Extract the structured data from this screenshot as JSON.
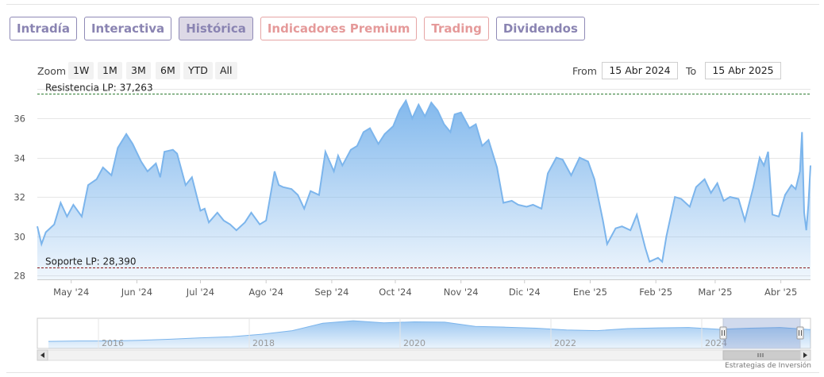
{
  "tabs": [
    {
      "label": "Intradía",
      "active": false,
      "premium": false
    },
    {
      "label": "Interactiva",
      "active": false,
      "premium": false
    },
    {
      "label": "Histórica",
      "active": true,
      "premium": false
    },
    {
      "label": "Indicadores Premium",
      "active": false,
      "premium": true
    },
    {
      "label": "Trading",
      "active": false,
      "premium": true
    },
    {
      "label": "Dividendos",
      "active": false,
      "premium": false
    }
  ],
  "range_selector": {
    "zoom_label": "Zoom",
    "buttons": [
      "1W",
      "1M",
      "3M",
      "6M",
      "YTD",
      "All"
    ],
    "from_label": "From",
    "from_value": "15 Abr 2024",
    "to_label": "To",
    "to_value": "15 Abr 2025"
  },
  "chart_data": {
    "type": "area",
    "title": "",
    "xlabel": "",
    "ylabel": "",
    "x_range": [
      "2024-04-15",
      "2025-04-15"
    ],
    "ylim": [
      27.8,
      37.5
    ],
    "y_ticks": [
      28,
      30,
      32,
      34,
      36
    ],
    "x_ticks": [
      {
        "label": "May '24",
        "date": "2024-05-01"
      },
      {
        "label": "Jun '24",
        "date": "2024-06-01"
      },
      {
        "label": "Jul '24",
        "date": "2024-07-01"
      },
      {
        "label": "Ago '24",
        "date": "2024-08-01"
      },
      {
        "label": "Sep '24",
        "date": "2024-09-01"
      },
      {
        "label": "Oct '24",
        "date": "2024-10-01"
      },
      {
        "label": "Nov '24",
        "date": "2024-11-01"
      },
      {
        "label": "Dic '24",
        "date": "2024-12-01"
      },
      {
        "label": "Ene '25",
        "date": "2025-01-01"
      },
      {
        "label": "Feb '25",
        "date": "2025-02-01"
      },
      {
        "label": "Mar '25",
        "date": "2025-03-01"
      },
      {
        "label": "Abr '25",
        "date": "2025-04-01"
      }
    ],
    "grid": true,
    "line_color": "#7cb5ec",
    "series": [
      {
        "name": "",
        "data": [
          [
            "2024-04-15",
            30.5
          ],
          [
            "2024-04-17",
            29.6
          ],
          [
            "2024-04-19",
            30.2
          ],
          [
            "2024-04-23",
            30.6
          ],
          [
            "2024-04-26",
            31.7
          ],
          [
            "2024-04-29",
            31.0
          ],
          [
            "2024-05-02",
            31.6
          ],
          [
            "2024-05-06",
            31.0
          ],
          [
            "2024-05-09",
            32.6
          ],
          [
            "2024-05-13",
            32.9
          ],
          [
            "2024-05-16",
            33.5
          ],
          [
            "2024-05-20",
            33.1
          ],
          [
            "2024-05-23",
            34.5
          ],
          [
            "2024-05-27",
            35.2
          ],
          [
            "2024-05-30",
            34.7
          ],
          [
            "2024-06-03",
            33.8
          ],
          [
            "2024-06-06",
            33.3
          ],
          [
            "2024-06-10",
            33.7
          ],
          [
            "2024-06-12",
            33.0
          ],
          [
            "2024-06-14",
            34.3
          ],
          [
            "2024-06-18",
            34.4
          ],
          [
            "2024-06-20",
            34.2
          ],
          [
            "2024-06-24",
            32.6
          ],
          [
            "2024-06-27",
            33.0
          ],
          [
            "2024-07-01",
            31.3
          ],
          [
            "2024-07-03",
            31.4
          ],
          [
            "2024-07-05",
            30.7
          ],
          [
            "2024-07-09",
            31.2
          ],
          [
            "2024-07-12",
            30.8
          ],
          [
            "2024-07-15",
            30.6
          ],
          [
            "2024-07-18",
            30.3
          ],
          [
            "2024-07-22",
            30.7
          ],
          [
            "2024-07-25",
            31.2
          ],
          [
            "2024-07-29",
            30.6
          ],
          [
            "2024-08-01",
            30.8
          ],
          [
            "2024-08-05",
            33.3
          ],
          [
            "2024-08-07",
            32.6
          ],
          [
            "2024-08-09",
            32.5
          ],
          [
            "2024-08-13",
            32.4
          ],
          [
            "2024-08-16",
            32.1
          ],
          [
            "2024-08-19",
            31.4
          ],
          [
            "2024-08-22",
            32.3
          ],
          [
            "2024-08-26",
            32.1
          ],
          [
            "2024-08-29",
            34.3
          ],
          [
            "2024-09-02",
            33.3
          ],
          [
            "2024-09-04",
            34.1
          ],
          [
            "2024-09-06",
            33.6
          ],
          [
            "2024-09-10",
            34.4
          ],
          [
            "2024-09-13",
            34.6
          ],
          [
            "2024-09-16",
            35.3
          ],
          [
            "2024-09-19",
            35.5
          ],
          [
            "2024-09-23",
            34.7
          ],
          [
            "2024-09-26",
            35.2
          ],
          [
            "2024-09-30",
            35.6
          ],
          [
            "2024-10-03",
            36.4
          ],
          [
            "2024-10-06",
            36.9
          ],
          [
            "2024-10-09",
            36.0
          ],
          [
            "2024-10-12",
            36.7
          ],
          [
            "2024-10-15",
            36.1
          ],
          [
            "2024-10-18",
            36.8
          ],
          [
            "2024-10-21",
            36.4
          ],
          [
            "2024-10-24",
            35.7
          ],
          [
            "2024-10-27",
            35.3
          ],
          [
            "2024-10-29",
            36.2
          ],
          [
            "2024-11-01",
            36.3
          ],
          [
            "2024-11-05",
            35.5
          ],
          [
            "2024-11-08",
            35.7
          ],
          [
            "2024-11-11",
            34.6
          ],
          [
            "2024-11-14",
            34.9
          ],
          [
            "2024-11-18",
            33.5
          ],
          [
            "2024-11-21",
            31.7
          ],
          [
            "2024-11-25",
            31.8
          ],
          [
            "2024-11-28",
            31.6
          ],
          [
            "2024-12-02",
            31.5
          ],
          [
            "2024-12-05",
            31.6
          ],
          [
            "2024-12-09",
            31.4
          ],
          [
            "2024-12-12",
            33.2
          ],
          [
            "2024-12-16",
            34.0
          ],
          [
            "2024-12-19",
            33.9
          ],
          [
            "2024-12-23",
            33.1
          ],
          [
            "2024-12-27",
            34.0
          ],
          [
            "2024-12-31",
            33.8
          ],
          [
            "2025-01-03",
            32.9
          ],
          [
            "2025-01-07",
            30.8
          ],
          [
            "2025-01-09",
            29.6
          ],
          [
            "2025-01-13",
            30.4
          ],
          [
            "2025-01-16",
            30.5
          ],
          [
            "2025-01-20",
            30.3
          ],
          [
            "2025-01-23",
            31.1
          ],
          [
            "2025-01-27",
            29.4
          ],
          [
            "2025-01-29",
            28.7
          ],
          [
            "2025-02-02",
            28.9
          ],
          [
            "2025-02-04",
            28.7
          ],
          [
            "2025-02-06",
            30.0
          ],
          [
            "2025-02-10",
            32.0
          ],
          [
            "2025-02-13",
            31.9
          ],
          [
            "2025-02-17",
            31.5
          ],
          [
            "2025-02-20",
            32.5
          ],
          [
            "2025-02-24",
            32.9
          ],
          [
            "2025-02-27",
            32.2
          ],
          [
            "2025-03-02",
            32.7
          ],
          [
            "2025-03-05",
            31.8
          ],
          [
            "2025-03-08",
            32.0
          ],
          [
            "2025-03-12",
            31.9
          ],
          [
            "2025-03-15",
            30.8
          ],
          [
            "2025-03-19",
            32.5
          ],
          [
            "2025-03-22",
            34.0
          ],
          [
            "2025-03-24",
            33.6
          ],
          [
            "2025-03-26",
            34.3
          ],
          [
            "2025-03-28",
            31.1
          ],
          [
            "2025-03-31",
            31.0
          ],
          [
            "2025-04-03",
            32.1
          ],
          [
            "2025-04-06",
            32.6
          ],
          [
            "2025-04-08",
            32.4
          ],
          [
            "2025-04-10",
            33.3
          ],
          [
            "2025-04-11",
            35.3
          ],
          [
            "2025-04-12",
            31.2
          ],
          [
            "2025-04-13",
            30.3
          ],
          [
            "2025-04-14",
            31.6
          ],
          [
            "2025-04-15",
            33.6
          ]
        ]
      }
    ],
    "annotations": [
      {
        "label": "Resistencia LP: 37,263",
        "y": 37.263,
        "color": "#2e7d32"
      },
      {
        "label": "Soporte LP: 28,390",
        "y": 28.39,
        "color": "#8b1a1a"
      }
    ],
    "navigator": {
      "x_labels": [
        "2016",
        "2018",
        "2020",
        "2022",
        "2024"
      ],
      "values": [
        2.0,
        2.1,
        2.1,
        2.3,
        2.6,
        3.0,
        3.3,
        4.0,
        5.0,
        7.1,
        7.8,
        7.2,
        7.5,
        7.4,
        6.2,
        6.0,
        5.7,
        5.2,
        5.0,
        5.6,
        5.8,
        5.9,
        5.4,
        5.7,
        5.9,
        5.3
      ]
    }
  },
  "watermark": "Estrategias de Inversión"
}
